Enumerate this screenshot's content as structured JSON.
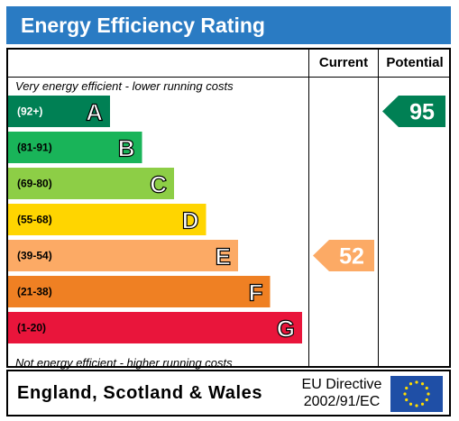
{
  "title": "Energy Efficiency Rating",
  "columns": {
    "current": "Current",
    "potential": "Potential"
  },
  "top_note": "Very energy efficient - lower running costs",
  "bottom_note": "Not energy efficient - higher running costs",
  "footer": {
    "country": "England, Scotland & Wales",
    "directive_line1": "EU Directive",
    "directive_line2": "2002/91/EC",
    "flag_icon": "eu-flag-icon"
  },
  "chart_data": {
    "type": "bar",
    "categories": [
      "A",
      "B",
      "C",
      "D",
      "E",
      "F",
      "G"
    ],
    "ranges": [
      "(92+)",
      "(81-91)",
      "(69-80)",
      "(55-68)",
      "(39-54)",
      "(21-38)",
      "(1-20)"
    ],
    "colors": [
      "#008054",
      "#19b459",
      "#8dce46",
      "#ffd500",
      "#fcaa65",
      "#ef8023",
      "#e9153b"
    ],
    "current": {
      "value": 52,
      "band": "E",
      "color": "#fcaa65"
    },
    "potential": {
      "value": 95,
      "band": "A",
      "color": "#008054"
    }
  }
}
